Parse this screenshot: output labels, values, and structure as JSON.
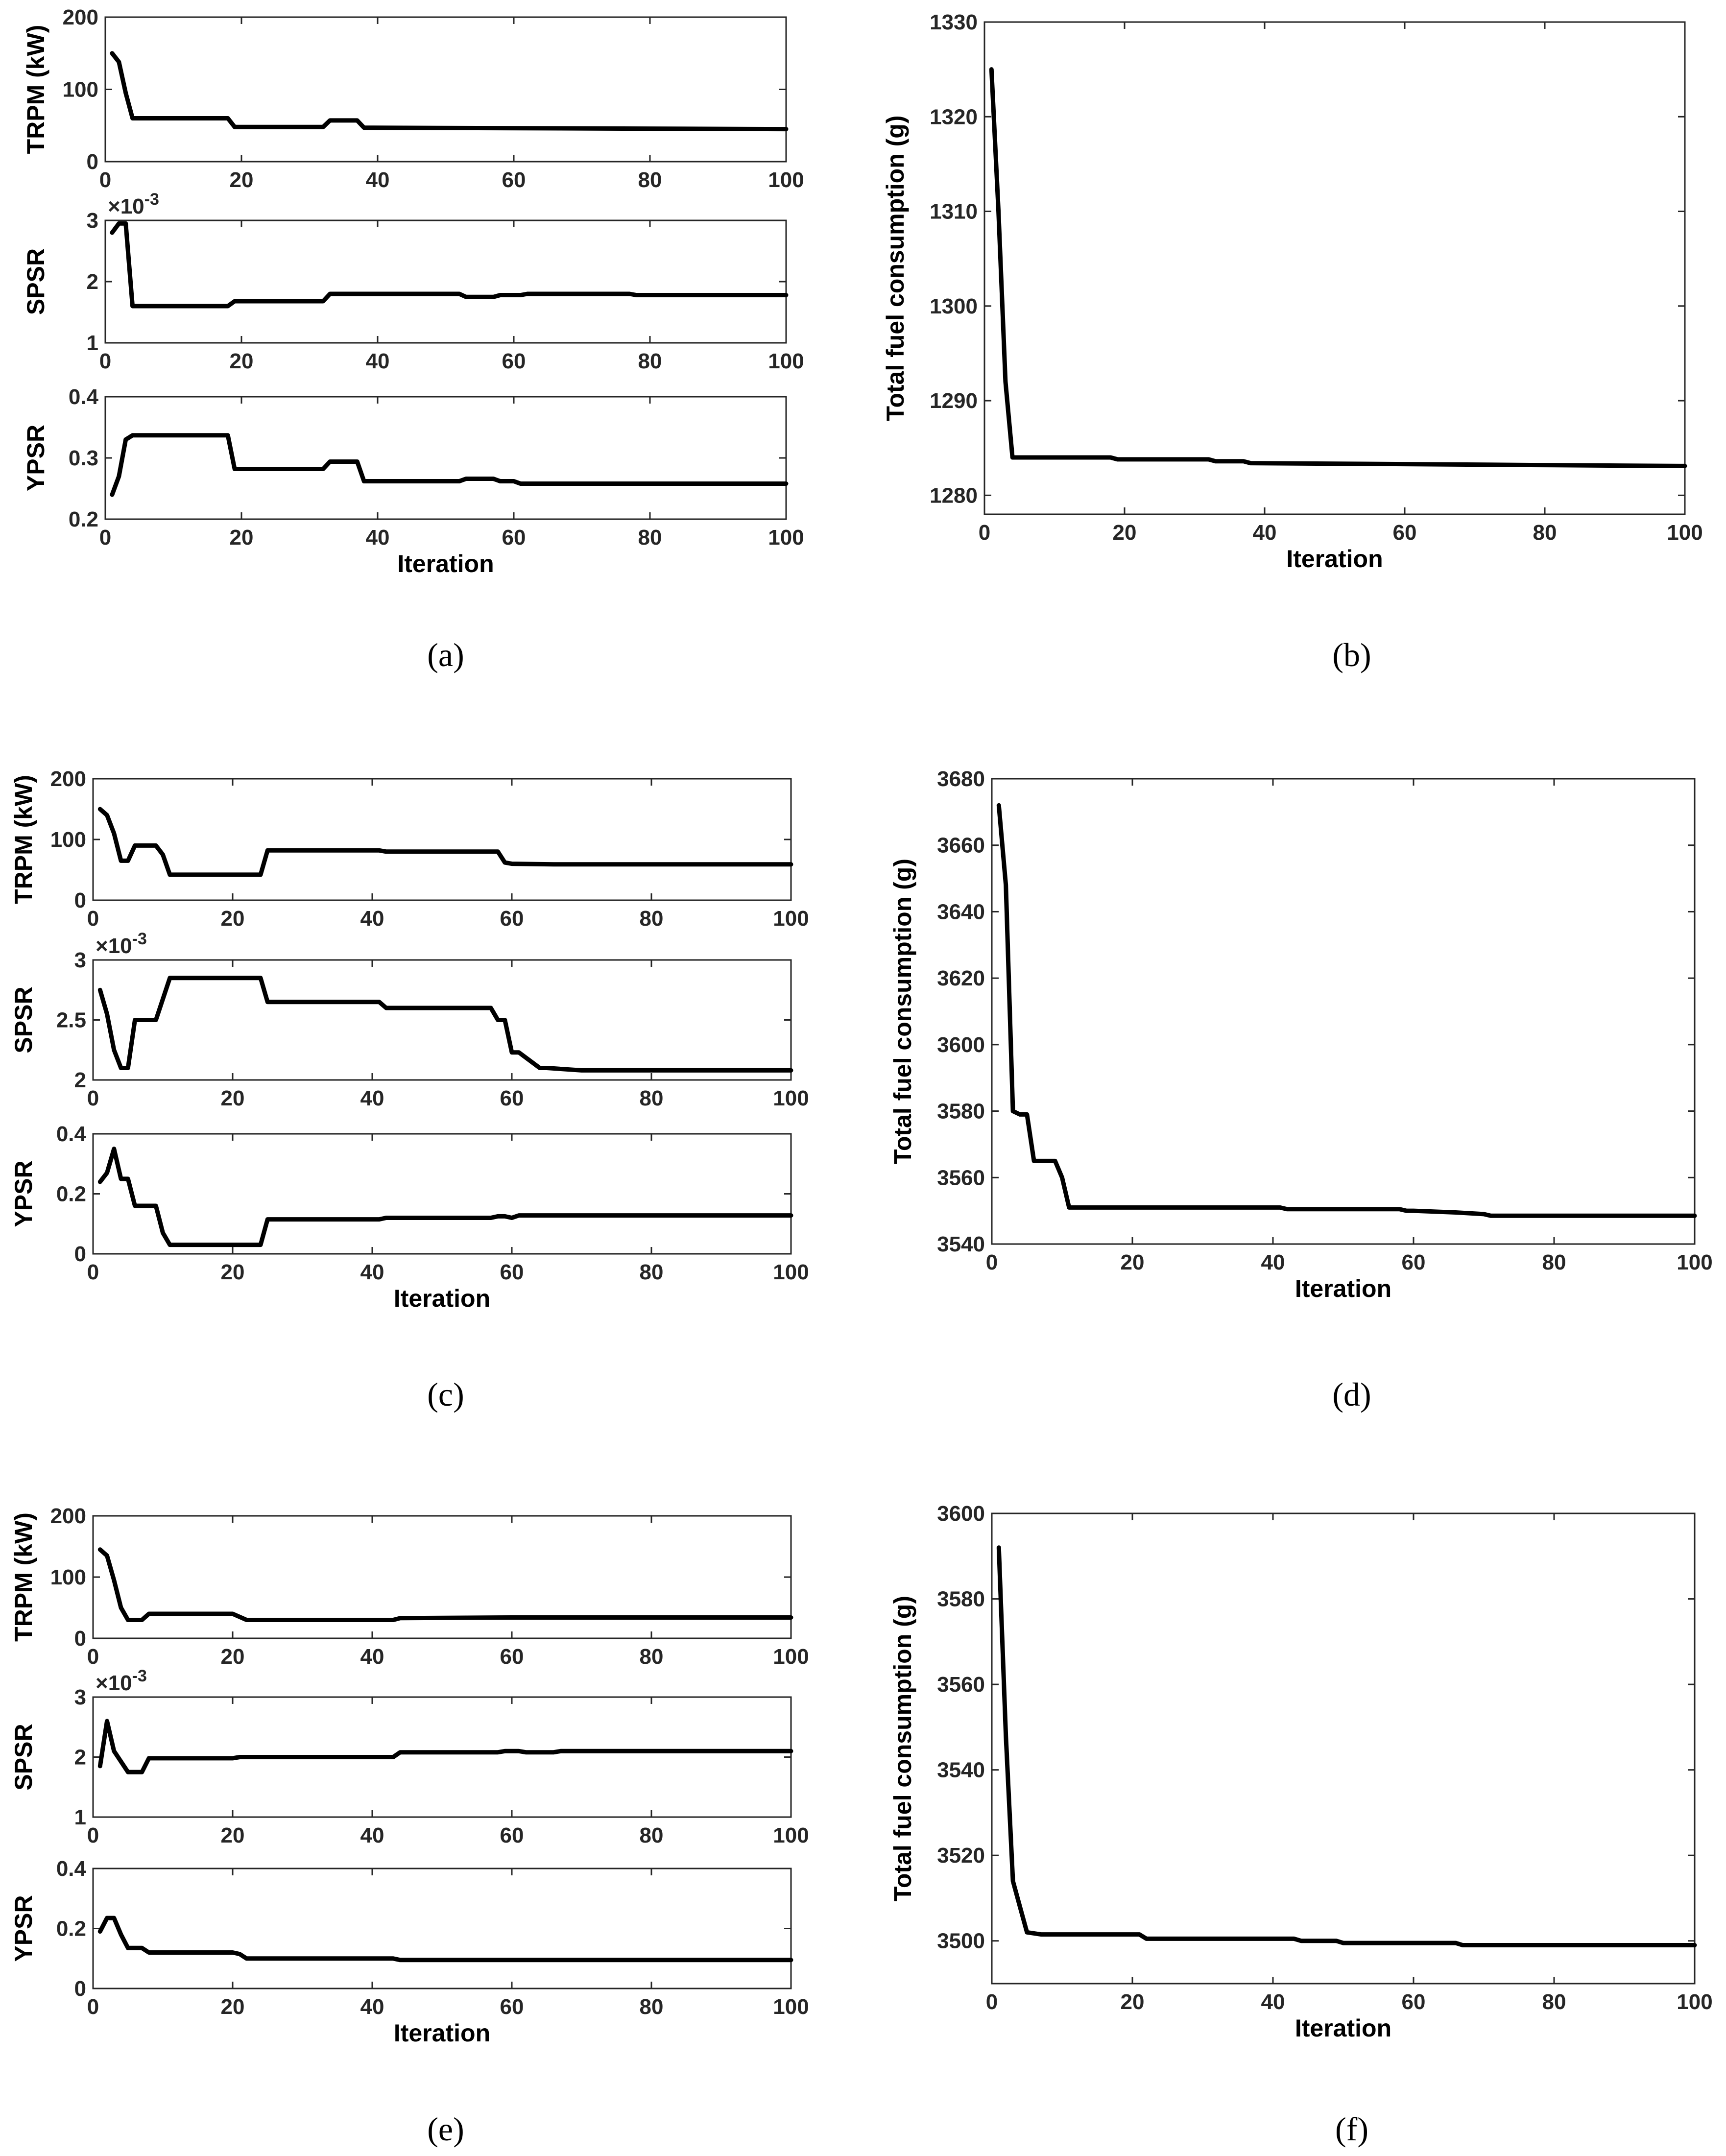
{
  "chart_data": [
    {
      "id": "a-trpm",
      "type": "line",
      "panel": "a",
      "ylabel": "TRPM (kW)",
      "xlabel": "",
      "exponent": "",
      "xlim": [
        0,
        100
      ],
      "ylim": [
        0,
        200
      ],
      "xticks": [
        "0",
        "20",
        "40",
        "60",
        "80",
        "100"
      ],
      "yticks": [
        "0",
        "100",
        "200"
      ],
      "ytick_values": [
        0,
        100,
        200
      ],
      "series": [
        {
          "color": "#000000",
          "x": [
            1,
            2,
            3,
            4,
            18,
            19,
            32,
            33,
            37,
            38,
            100
          ],
          "y": [
            150,
            138,
            95,
            60,
            60,
            48,
            48,
            57,
            57,
            47,
            45
          ]
        }
      ]
    },
    {
      "id": "a-spsr",
      "type": "line",
      "panel": "a",
      "ylabel": "SPSR",
      "xlabel": "",
      "exponent": "-3",
      "xlim": [
        0,
        100
      ],
      "ylim": [
        1,
        3
      ],
      "xticks": [
        "0",
        "20",
        "40",
        "60",
        "80",
        "100"
      ],
      "yticks": [
        "1",
        "2",
        "3"
      ],
      "ytick_values": [
        1,
        2,
        3
      ],
      "series": [
        {
          "color": "#000000",
          "x": [
            1,
            2,
            3,
            4,
            18,
            19,
            32,
            33,
            37,
            52,
            53,
            57,
            58,
            61,
            62,
            77,
            78,
            100
          ],
          "y": [
            2.8,
            2.95,
            2.95,
            1.6,
            1.6,
            1.68,
            1.68,
            1.8,
            1.8,
            1.8,
            1.75,
            1.75,
            1.78,
            1.78,
            1.8,
            1.8,
            1.78,
            1.78
          ]
        }
      ]
    },
    {
      "id": "a-ypsr",
      "type": "line",
      "panel": "a",
      "ylabel": "YPSR",
      "xlabel": "Iteration",
      "exponent": "",
      "xlim": [
        0,
        100
      ],
      "ylim": [
        0.2,
        0.4
      ],
      "xticks": [
        "0",
        "20",
        "40",
        "60",
        "80",
        "100"
      ],
      "yticks": [
        "0.2",
        "0.3",
        "0.4"
      ],
      "ytick_values": [
        0.2,
        0.3,
        0.4
      ],
      "series": [
        {
          "color": "#000000",
          "x": [
            1,
            2,
            3,
            4,
            18,
            19,
            32,
            33,
            37,
            38,
            52,
            53,
            57,
            58,
            60,
            61,
            77,
            78,
            100
          ],
          "y": [
            0.24,
            0.27,
            0.33,
            0.337,
            0.337,
            0.282,
            0.282,
            0.294,
            0.294,
            0.262,
            0.262,
            0.266,
            0.266,
            0.262,
            0.262,
            0.258,
            0.258,
            0.258,
            0.258
          ]
        }
      ]
    },
    {
      "id": "b-fuel",
      "type": "line",
      "panel": "b",
      "ylabel": "Total fuel consumption (g)",
      "xlabel": "Iteration",
      "exponent": "",
      "xlim": [
        0,
        100
      ],
      "ylim": [
        1278,
        1330
      ],
      "xticks": [
        "0",
        "20",
        "40",
        "60",
        "80",
        "100"
      ],
      "yticks": [
        "1280",
        "1290",
        "1300",
        "1310",
        "1320",
        "1330"
      ],
      "ytick_values": [
        1280,
        1290,
        1300,
        1310,
        1320,
        1330
      ],
      "series": [
        {
          "color": "#000000",
          "x": [
            1,
            2,
            3,
            4,
            18,
            19,
            32,
            33,
            37,
            38,
            60,
            78,
            100
          ],
          "y": [
            1325,
            1310,
            1292,
            1284,
            1284,
            1283.8,
            1283.8,
            1283.6,
            1283.6,
            1283.4,
            1283.3,
            1283.2,
            1283.1
          ]
        }
      ]
    },
    {
      "id": "c-trpm",
      "type": "line",
      "panel": "c",
      "ylabel": "TRPM (kW)",
      "xlabel": "",
      "exponent": "",
      "xlim": [
        0,
        100
      ],
      "ylim": [
        0,
        200
      ],
      "xticks": [
        "0",
        "20",
        "40",
        "60",
        "80",
        "100"
      ],
      "yticks": [
        "0",
        "100",
        "200"
      ],
      "ytick_values": [
        0,
        100,
        200
      ],
      "series": [
        {
          "color": "#000000",
          "x": [
            1,
            2,
            3,
            4,
            5,
            6,
            7,
            9,
            10,
            11,
            24,
            25,
            41,
            42,
            58,
            59,
            60,
            66,
            100
          ],
          "y": [
            150,
            140,
            110,
            65,
            65,
            90,
            90,
            90,
            75,
            42,
            42,
            82,
            82,
            80,
            80,
            62,
            60,
            59,
            59
          ]
        }
      ]
    },
    {
      "id": "c-spsr",
      "type": "line",
      "panel": "c",
      "ylabel": "SPSR",
      "xlabel": "",
      "exponent": "-3",
      "xlim": [
        0,
        100
      ],
      "ylim": [
        2,
        3
      ],
      "xticks": [
        "0",
        "20",
        "40",
        "60",
        "80",
        "100"
      ],
      "yticks": [
        "2",
        "2.5",
        "3"
      ],
      "ytick_values": [
        2,
        2.5,
        3
      ],
      "series": [
        {
          "color": "#000000",
          "x": [
            1,
            2,
            3,
            4,
            5,
            6,
            9,
            11,
            24,
            25,
            41,
            42,
            57,
            58,
            59,
            60,
            61,
            64,
            65,
            70,
            71,
            100
          ],
          "y": [
            2.75,
            2.55,
            2.25,
            2.1,
            2.1,
            2.5,
            2.5,
            2.85,
            2.85,
            2.65,
            2.65,
            2.6,
            2.6,
            2.5,
            2.5,
            2.23,
            2.23,
            2.1,
            2.1,
            2.08,
            2.08,
            2.08
          ]
        }
      ]
    },
    {
      "id": "c-ypsr",
      "type": "line",
      "panel": "c",
      "ylabel": "YPSR",
      "xlabel": "Iteration",
      "exponent": "",
      "xlim": [
        0,
        100
      ],
      "ylim": [
        0,
        0.4
      ],
      "xticks": [
        "0",
        "20",
        "40",
        "60",
        "80",
        "100"
      ],
      "yticks": [
        "0",
        "0.2",
        "0.4"
      ],
      "ytick_values": [
        0,
        0.2,
        0.4
      ],
      "series": [
        {
          "color": "#000000",
          "x": [
            1,
            2,
            3,
            4,
            5,
            6,
            9,
            10,
            11,
            24,
            25,
            41,
            42,
            57,
            58,
            59,
            60,
            61,
            66,
            100
          ],
          "y": [
            0.24,
            0.27,
            0.35,
            0.25,
            0.25,
            0.16,
            0.16,
            0.07,
            0.03,
            0.03,
            0.115,
            0.115,
            0.12,
            0.12,
            0.125,
            0.125,
            0.12,
            0.128,
            0.128,
            0.128
          ]
        }
      ]
    },
    {
      "id": "d-fuel",
      "type": "line",
      "panel": "d",
      "ylabel": "Total fuel consumption (g)",
      "xlabel": "Iteration",
      "exponent": "",
      "xlim": [
        0,
        100
      ],
      "ylim": [
        3540,
        3680
      ],
      "xticks": [
        "0",
        "20",
        "40",
        "60",
        "80",
        "100"
      ],
      "yticks": [
        "3540",
        "3560",
        "3580",
        "3600",
        "3620",
        "3640",
        "3660",
        "3680"
      ],
      "ytick_values": [
        3540,
        3560,
        3580,
        3600,
        3620,
        3640,
        3660,
        3680
      ],
      "series": [
        {
          "color": "#000000",
          "x": [
            1,
            2,
            3,
            4,
            5,
            6,
            9,
            10,
            11,
            24,
            25,
            41,
            42,
            58,
            59,
            60,
            66,
            70,
            71,
            100
          ],
          "y": [
            3672,
            3648,
            3580,
            3579,
            3579,
            3565,
            3565,
            3560,
            3551,
            3551,
            3551,
            3551,
            3550.5,
            3550.5,
            3550,
            3550,
            3549.5,
            3549,
            3548.5,
            3548.5
          ]
        }
      ]
    },
    {
      "id": "e-trpm",
      "type": "line",
      "panel": "e",
      "ylabel": "TRPM (kW)",
      "xlabel": "",
      "exponent": "",
      "xlim": [
        0,
        100
      ],
      "ylim": [
        0,
        200
      ],
      "xticks": [
        "0",
        "20",
        "40",
        "60",
        "80",
        "100"
      ],
      "yticks": [
        "0",
        "100",
        "200"
      ],
      "ytick_values": [
        0,
        100,
        200
      ],
      "series": [
        {
          "color": "#000000",
          "x": [
            1,
            2,
            3,
            4,
            5,
            7,
            8,
            20,
            21,
            22,
            43,
            44,
            60,
            100
          ],
          "y": [
            145,
            135,
            95,
            50,
            30,
            30,
            40,
            40,
            35,
            30,
            30,
            33,
            34,
            34
          ]
        }
      ]
    },
    {
      "id": "e-spsr",
      "type": "line",
      "panel": "e",
      "ylabel": "SPSR",
      "xlabel": "",
      "exponent": "-3",
      "xlim": [
        0,
        100
      ],
      "ylim": [
        1,
        3
      ],
      "xticks": [
        "0",
        "20",
        "40",
        "60",
        "80",
        "100"
      ],
      "yticks": [
        "1",
        "2",
        "3"
      ],
      "ytick_values": [
        1,
        2,
        3
      ],
      "series": [
        {
          "color": "#000000",
          "x": [
            1,
            2,
            3,
            5,
            7,
            8,
            20,
            21,
            43,
            44,
            58,
            59,
            61,
            62,
            66,
            67,
            100
          ],
          "y": [
            1.85,
            2.6,
            2.1,
            1.75,
            1.75,
            1.98,
            1.98,
            2.0,
            2.0,
            2.08,
            2.08,
            2.1,
            2.1,
            2.08,
            2.08,
            2.1,
            2.1
          ]
        }
      ]
    },
    {
      "id": "e-ypsr",
      "type": "line",
      "panel": "e",
      "ylabel": "YPSR",
      "xlabel": "Iteration",
      "exponent": "",
      "xlim": [
        0,
        100
      ],
      "ylim": [
        0,
        0.4
      ],
      "xticks": [
        "0",
        "20",
        "40",
        "60",
        "80",
        "100"
      ],
      "yticks": [
        "0",
        "0.2",
        "0.4"
      ],
      "ytick_values": [
        0,
        0.2,
        0.4
      ],
      "series": [
        {
          "color": "#000000",
          "x": [
            1,
            2,
            3,
            4,
            5,
            7,
            8,
            20,
            21,
            22,
            43,
            44,
            60,
            100
          ],
          "y": [
            0.19,
            0.235,
            0.235,
            0.18,
            0.135,
            0.135,
            0.12,
            0.12,
            0.115,
            0.1,
            0.1,
            0.095,
            0.095,
            0.095
          ]
        }
      ]
    },
    {
      "id": "f-fuel",
      "type": "line",
      "panel": "f",
      "ylabel": "Total fuel consumption (g)",
      "xlabel": "Iteration",
      "exponent": "",
      "xlim": [
        0,
        100
      ],
      "ylim": [
        3490,
        3600
      ],
      "xticks": [
        "0",
        "20",
        "40",
        "60",
        "80",
        "100"
      ],
      "yticks": [
        "3500",
        "3520",
        "3540",
        "3560",
        "3580",
        "3600"
      ],
      "ytick_values": [
        3500,
        3520,
        3540,
        3560,
        3580,
        3600
      ],
      "series": [
        {
          "color": "#000000",
          "x": [
            1,
            2,
            3,
            4,
            5,
            7,
            8,
            20,
            21,
            22,
            43,
            44,
            49,
            50,
            66,
            67,
            100
          ],
          "y": [
            3592,
            3548,
            3514,
            3508,
            3502,
            3501.5,
            3501.5,
            3501.5,
            3501.5,
            3500.5,
            3500.5,
            3500,
            3500,
            3499.5,
            3499.5,
            3499,
            3499
          ]
        }
      ]
    }
  ],
  "captions": {
    "a": "(a)",
    "b": "(b)",
    "c": "(c)",
    "d": "(d)",
    "e": "(e)",
    "f": "(f)"
  }
}
